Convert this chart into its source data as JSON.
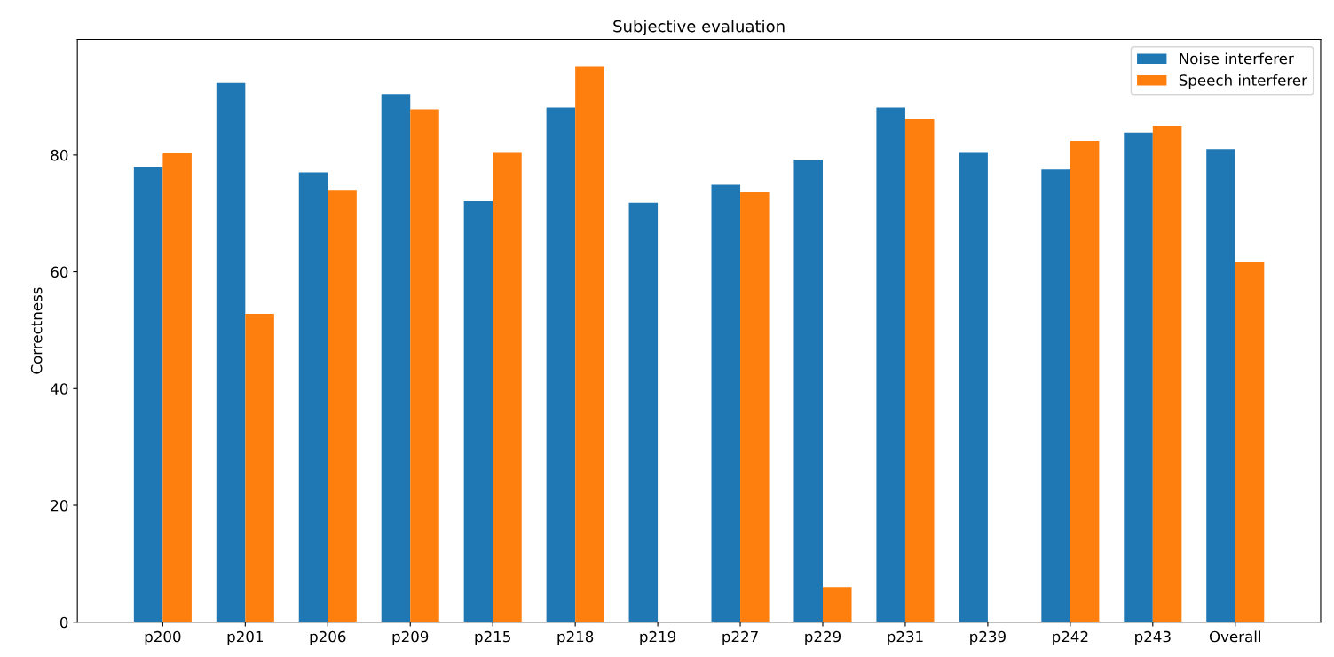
{
  "chart_data": {
    "type": "bar",
    "title": "Subjective evaluation",
    "ylabel": "Correctness",
    "categories": [
      "p200",
      "p201",
      "p206",
      "p209",
      "p215",
      "p218",
      "p219",
      "p227",
      "p229",
      "p231",
      "p239",
      "p242",
      "p243",
      "Overall"
    ],
    "series": [
      {
        "name": "Noise interferer",
        "color": "#1f77b4",
        "values": [
          78.0,
          92.3,
          77.0,
          90.4,
          72.1,
          88.1,
          71.8,
          74.9,
          79.2,
          88.1,
          80.5,
          77.5,
          83.8,
          81.0
        ]
      },
      {
        "name": "Speech interferer",
        "color": "#ff7f0e",
        "values": [
          80.3,
          52.8,
          74.0,
          87.8,
          80.5,
          95.1,
          null,
          73.7,
          6.0,
          86.2,
          null,
          82.4,
          85.0,
          61.7
        ]
      }
    ],
    "ylim": [
      0,
      99.8
    ],
    "yticks": [
      0,
      20,
      40,
      60,
      80
    ],
    "grid": false,
    "legend": "top right"
  }
}
